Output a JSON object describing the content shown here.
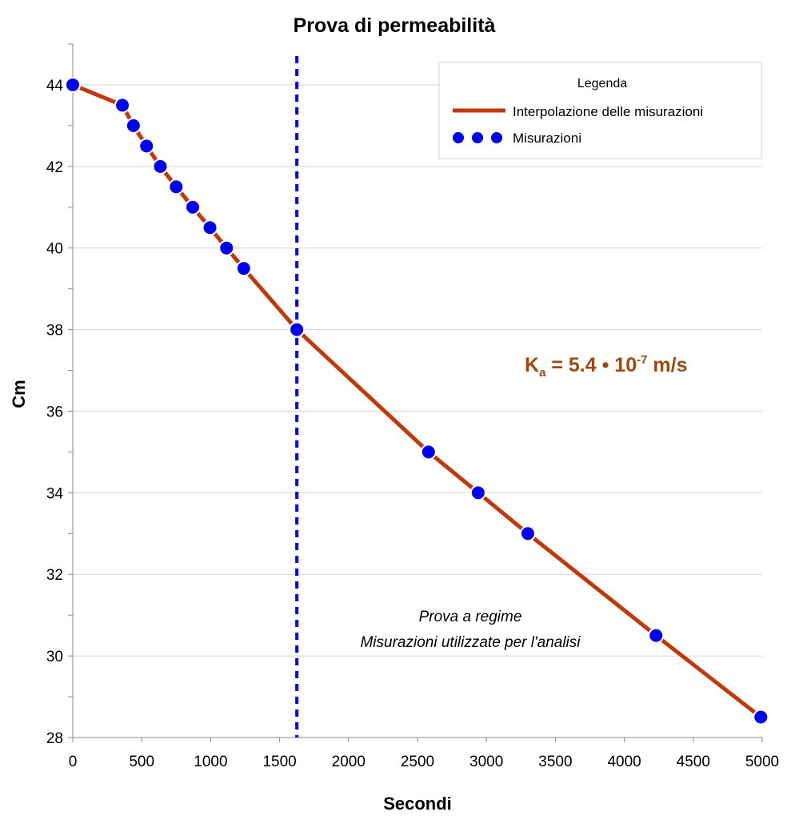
{
  "chart_data": {
    "type": "line",
    "title": "Prova di permeabilità",
    "xlabel": "Secondi",
    "ylabel": "Cm",
    "xlim": [
      0,
      5000
    ],
    "ylim": [
      28,
      45
    ],
    "x_ticks": [
      0,
      500,
      1000,
      1500,
      2000,
      2500,
      3000,
      3500,
      4000,
      4500,
      5000
    ],
    "y_ticks": [
      28,
      30,
      32,
      34,
      36,
      38,
      40,
      42,
      44
    ],
    "y_minor_step": 1,
    "grid": "horizontal",
    "series": [
      {
        "name": "Interpolazione delle misurazioni",
        "kind": "line",
        "color": "#C0390B",
        "x": [
          0,
          360,
          440,
          535,
          635,
          750,
          870,
          995,
          1115,
          1240,
          1625,
          2580,
          2940,
          3300,
          4230,
          4990
        ],
        "y": [
          44,
          43.5,
          43,
          42.5,
          42,
          41.5,
          41,
          40.5,
          40,
          39.5,
          38,
          35,
          34,
          33,
          30.5,
          28.5
        ]
      },
      {
        "name": "Misurazioni",
        "kind": "points",
        "color": "#0000EE",
        "x": [
          0,
          360,
          440,
          535,
          635,
          750,
          870,
          995,
          1115,
          1240,
          1625,
          2580,
          2940,
          3300,
          4230,
          4990
        ],
        "y": [
          44,
          43.5,
          43,
          42.5,
          42,
          41.5,
          41,
          40.5,
          40,
          39.5,
          38,
          35,
          34,
          33,
          30.5,
          28.5
        ]
      }
    ],
    "vertical_marker": {
      "x": 1625,
      "color": "#0000EE",
      "style": "dotted"
    },
    "legend": {
      "title": "Legenda",
      "placement": "top-right",
      "items": [
        "Interpolazione delle misurazioni",
        "Misurazioni"
      ]
    },
    "annotations": {
      "ka_symbol": "K",
      "ka_subscript": "a",
      "ka_value": " = 5.4 • 10",
      "ka_exponent": "-7",
      "ka_unit": " m/s",
      "ka_color": "#9C4A12",
      "note_line1": "Prova a regime",
      "note_line2": "Misurazioni utilizzate per l'analisi"
    }
  }
}
